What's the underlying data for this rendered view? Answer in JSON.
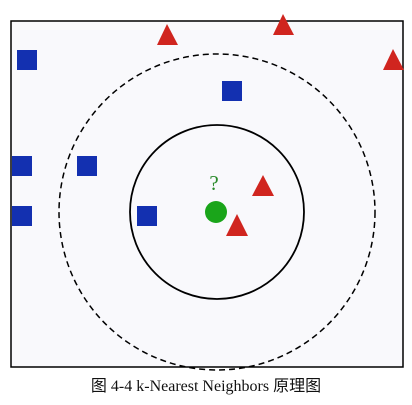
{
  "figure": {
    "caption": "图 4-4 k-Nearest Neighbors 原理图",
    "query_point": {
      "label": "?",
      "shape": "circle",
      "color": "#1aa51a",
      "label_color": "#2a8a2a"
    },
    "classes": [
      {
        "shape": "square",
        "color": "#1330b0"
      },
      {
        "shape": "triangle",
        "color": "#d0251f"
      }
    ],
    "neighborhoods": [
      {
        "style": "solid",
        "color": "#000000"
      },
      {
        "style": "dashed",
        "color": "#000000"
      }
    ],
    "colors": {
      "background": "#f9f9fc",
      "border": "#000000"
    }
  }
}
